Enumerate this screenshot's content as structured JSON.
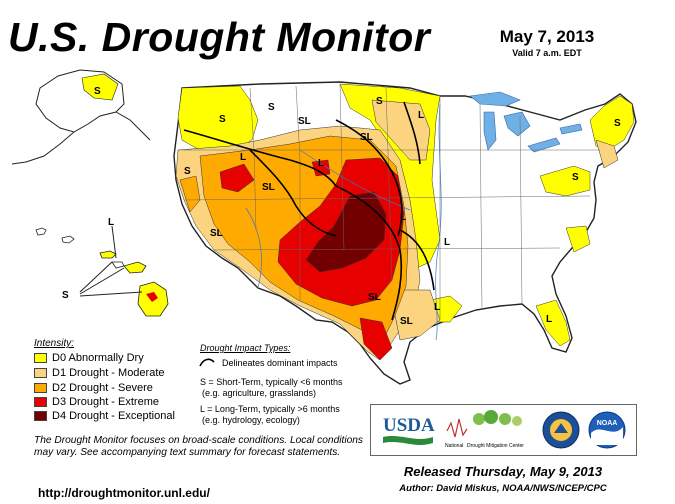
{
  "title": "U.S. Drought Monitor",
  "date": "May 7, 2013",
  "valid": "Valid 7 a.m. EDT",
  "legend": {
    "title": "Intensity:",
    "items": [
      {
        "label": "D0 Abnormally Dry",
        "color": "#ffff00"
      },
      {
        "label": "D1 Drought - Moderate",
        "color": "#fcd37f"
      },
      {
        "label": "D2 Drought - Severe",
        "color": "#ffaa00"
      },
      {
        "label": "D3 Drought - Extreme",
        "color": "#e60000"
      },
      {
        "label": "D4 Drought - Exceptional",
        "color": "#730000"
      }
    ]
  },
  "impact": {
    "title": "Drought Impact Types:",
    "delineates": "Delineates dominant impacts",
    "short_term": "S = Short-Term, typically <6 months",
    "short_term_eg": "(e.g. agriculture, grasslands)",
    "long_term": "L = Long-Term, typically >6 months",
    "long_term_eg": "(e.g. hydrology, ecology)"
  },
  "map_labels": {
    "s": "S",
    "l": "L",
    "sl": "SL"
  },
  "note": "The Drought Monitor focuses on broad-scale conditions. Local conditions may vary. See accompanying text summary for forecast statements.",
  "url": "http://droughtmonitor.unl.edu/",
  "logos": {
    "usda": "USDA",
    "ndmc_line1": "National",
    "ndmc_line2": "Drought Mitigation Center",
    "noaa": "NOAA"
  },
  "released": "Released Thursday, May 9, 2013",
  "author": "Author: David Miskus, NOAA/NWS/NCEP/CPC",
  "colors": {
    "d0": "#ffff00",
    "d1": "#fcd37f",
    "d2": "#ffaa00",
    "d3": "#e60000",
    "d4": "#730000",
    "water": "#6fb0e6",
    "border": "#222222"
  }
}
